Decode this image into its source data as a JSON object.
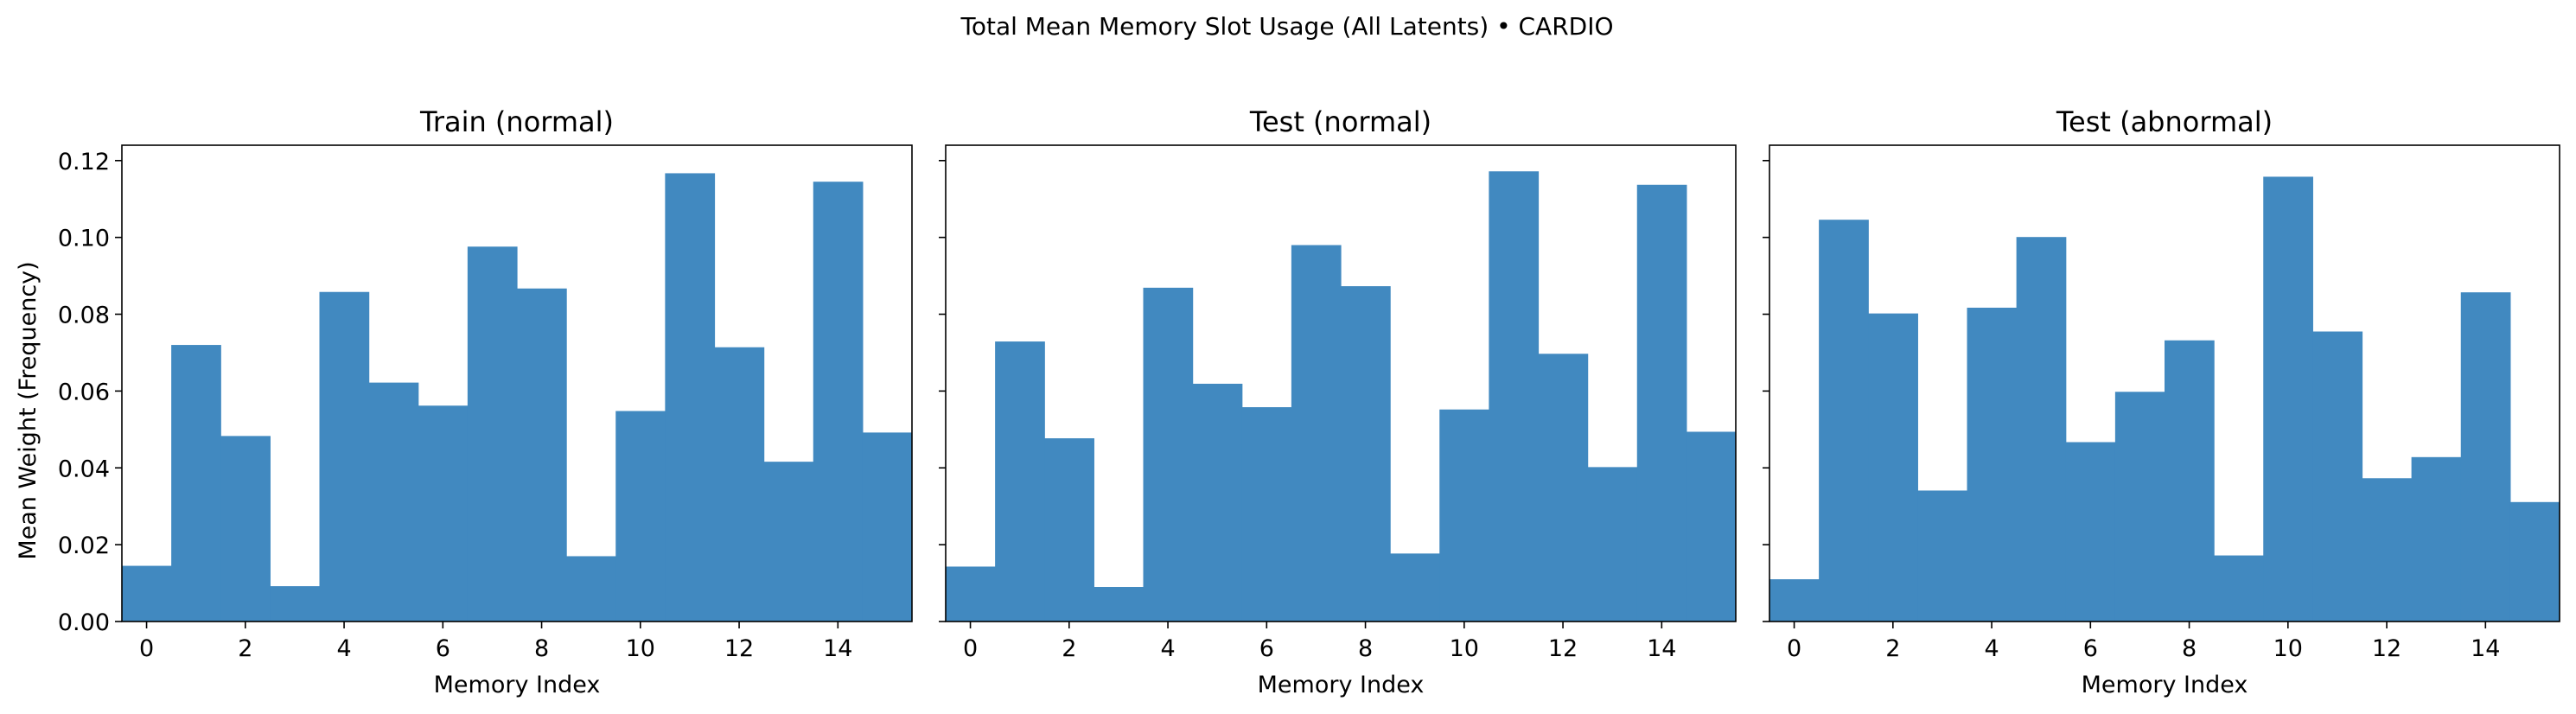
{
  "figure": {
    "suptitle": "Total Mean Memory Slot Usage (All Latents) • CARDIO",
    "bar_color": "#4189c0",
    "shared_ylabel": "Mean Weight (Frequency)"
  },
  "chart_data": [
    {
      "type": "bar",
      "title": "Train (normal)",
      "xlabel": "Memory Index",
      "ylabel": "Mean Weight (Frequency)",
      "categories": [
        0,
        1,
        2,
        3,
        4,
        5,
        6,
        7,
        8,
        9,
        10,
        11,
        12,
        13,
        14,
        15
      ],
      "values": [
        0.0145,
        0.072,
        0.0483,
        0.0092,
        0.0858,
        0.0622,
        0.0562,
        0.0976,
        0.0867,
        0.017,
        0.0548,
        0.1167,
        0.0714,
        0.0416,
        0.1145,
        0.0492
      ],
      "xlim": [
        -0.5,
        15.5
      ],
      "ylim": [
        0,
        0.124
      ],
      "xticks": [
        "0",
        "2",
        "4",
        "6",
        "8",
        "10",
        "12",
        "14"
      ],
      "yticks": [
        "0.00",
        "0.02",
        "0.04",
        "0.06",
        "0.08",
        "0.10",
        "0.12"
      ],
      "show_ytick_labels": true,
      "grid": false
    },
    {
      "type": "bar",
      "title": "Test (normal)",
      "xlabel": "Memory Index",
      "ylabel": "",
      "categories": [
        0,
        1,
        2,
        3,
        4,
        5,
        6,
        7,
        8,
        9,
        10,
        11,
        12,
        13,
        14,
        15
      ],
      "values": [
        0.0143,
        0.0729,
        0.0477,
        0.009,
        0.0869,
        0.0619,
        0.0558,
        0.098,
        0.0873,
        0.0177,
        0.0552,
        0.1172,
        0.0697,
        0.0402,
        0.1137,
        0.0494
      ],
      "xlim": [
        -0.5,
        15.5
      ],
      "ylim": [
        0,
        0.124
      ],
      "xticks": [
        "0",
        "2",
        "4",
        "6",
        "8",
        "10",
        "12",
        "14"
      ],
      "yticks": [
        "0.00",
        "0.02",
        "0.04",
        "0.06",
        "0.08",
        "0.10",
        "0.12"
      ],
      "show_ytick_labels": false,
      "grid": false
    },
    {
      "type": "bar",
      "title": "Test (abnormal)",
      "xlabel": "Memory Index",
      "ylabel": "",
      "categories": [
        0,
        1,
        2,
        3,
        4,
        5,
        6,
        7,
        8,
        9,
        10,
        11,
        12,
        13,
        14,
        15
      ],
      "values": [
        0.011,
        0.1046,
        0.0802,
        0.0341,
        0.0817,
        0.1001,
        0.0467,
        0.0598,
        0.0732,
        0.0172,
        0.1158,
        0.0755,
        0.0373,
        0.0428,
        0.0857,
        0.0311
      ],
      "xlim": [
        -0.5,
        15.5
      ],
      "ylim": [
        0,
        0.124
      ],
      "xticks": [
        "0",
        "2",
        "4",
        "6",
        "8",
        "10",
        "12",
        "14"
      ],
      "yticks": [
        "0.00",
        "0.02",
        "0.04",
        "0.06",
        "0.08",
        "0.10",
        "0.12"
      ],
      "show_ytick_labels": false,
      "grid": false
    }
  ]
}
